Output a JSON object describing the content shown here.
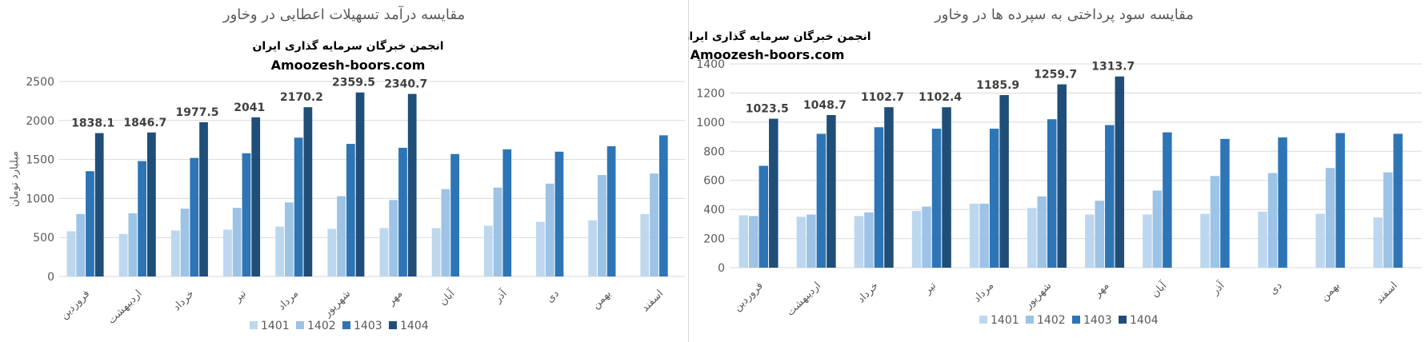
{
  "watermark": {
    "line1": "انجمن خبرگان سرمایه گذاری ایران",
    "line2": "Amoozesh-boors.com"
  },
  "colors": {
    "1401": "#bdd7ee",
    "1402": "#9dc3e6",
    "1403": "#2e75b6",
    "1404": "#1f4e79",
    "grid": "#d9d9d9"
  },
  "chart_data": [
    {
      "type": "bar",
      "title": "مقایسه درآمد تسهیلات اعطایی در وخاور",
      "ylabel": "میلیارد تومان",
      "ylim": [
        0,
        2500
      ],
      "yticks": [
        0,
        500,
        1000,
        1500,
        2000,
        2500
      ],
      "legend_position": "bottom",
      "grid": true,
      "categories": [
        "فروردین",
        "اردیبهشت",
        "خرداد",
        "تیر",
        "مرداد",
        "شهریور",
        "مهر",
        "آبان",
        "آذر",
        "دی",
        "بهمن",
        "اسفند"
      ],
      "series": [
        {
          "name": "1401",
          "values": [
            580,
            545,
            590,
            600,
            640,
            610,
            620,
            620,
            650,
            700,
            720,
            800
          ]
        },
        {
          "name": "1402",
          "values": [
            800,
            810,
            870,
            880,
            950,
            1030,
            980,
            1120,
            1140,
            1190,
            1300,
            1320
          ]
        },
        {
          "name": "1403",
          "values": [
            1350,
            1480,
            1520,
            1580,
            1780,
            1700,
            1650,
            1570,
            1630,
            1600,
            1670,
            1810
          ]
        },
        {
          "name": "1404",
          "values": [
            1838.1,
            1846.7,
            1977.5,
            2041,
            2170.2,
            2359.5,
            2340.7,
            null,
            null,
            null,
            null,
            null
          ]
        }
      ],
      "data_labels": {
        "series": "1404",
        "labels": [
          "1838.1",
          "1846.7",
          "1977.5",
          "2041",
          "2170.2",
          "2359.5",
          "2340.7"
        ]
      }
    },
    {
      "type": "bar",
      "title": "مقایسه سود پرداختی به سپرده ها در وخاور",
      "ylabel": "",
      "ylim": [
        0,
        1400
      ],
      "yticks": [
        0,
        200,
        400,
        600,
        800,
        1000,
        1200,
        1400
      ],
      "legend_position": "bottom",
      "grid": true,
      "categories": [
        "فروردین",
        "اردیبهشت",
        "خرداد",
        "تیر",
        "مرداد",
        "شهریور",
        "مهر",
        "آبان",
        "آذر",
        "دی",
        "بهمن",
        "اسفند"
      ],
      "series": [
        {
          "name": "1401",
          "values": [
            360,
            350,
            355,
            390,
            440,
            410,
            365,
            365,
            370,
            385,
            370,
            345
          ]
        },
        {
          "name": "1402",
          "values": [
            355,
            365,
            380,
            420,
            440,
            490,
            460,
            530,
            630,
            650,
            685,
            655
          ]
        },
        {
          "name": "1403",
          "values": [
            700,
            920,
            965,
            955,
            955,
            1020,
            980,
            930,
            885,
            895,
            925,
            920
          ]
        },
        {
          "name": "1404",
          "values": [
            1023.5,
            1048.7,
            1102.7,
            1102.4,
            1185.9,
            1259.7,
            1313.7,
            null,
            null,
            null,
            null,
            null
          ]
        }
      ],
      "data_labels": {
        "series": "1404",
        "labels": [
          "1023.5",
          "1048.7",
          "1102.7",
          "1102.4",
          "1185.9",
          "1259.7",
          "1313.7"
        ]
      }
    }
  ]
}
